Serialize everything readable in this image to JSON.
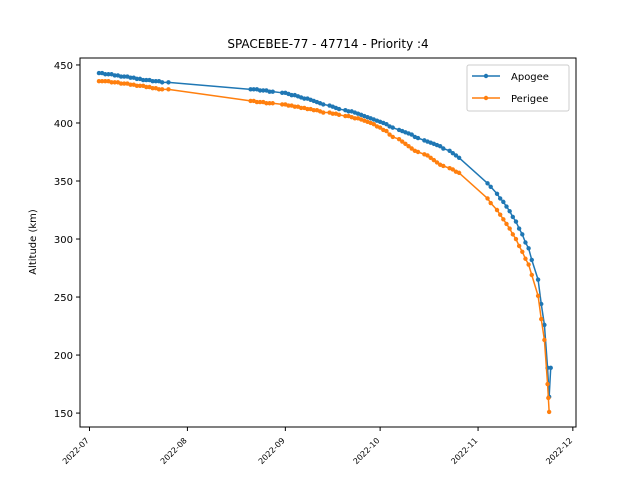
{
  "chart_data": {
    "type": "line",
    "title": "SPACEBEE-77 - 47714 - Priority :4",
    "xlabel": "",
    "ylabel": "Altitude (km)",
    "x_type": "date",
    "xlim": [
      "2022-06-28",
      "2022-12-02"
    ],
    "ylim": [
      138,
      456
    ],
    "yticks": [
      150,
      200,
      250,
      300,
      350,
      400,
      450
    ],
    "xticks": [
      "2022-07-01",
      "2022-08-01",
      "2022-09-01",
      "2022-10-01",
      "2022-11-01",
      "2022-12-01"
    ],
    "xtick_labels": [
      "2022-07",
      "2022-08",
      "2022-09",
      "2022-10",
      "2022-11",
      "2022-12"
    ],
    "grid": false,
    "legend_position": "top-right",
    "series": [
      {
        "name": "Apogee",
        "color": "#1f77b4",
        "x": [
          "2022-07-04",
          "2022-07-05",
          "2022-07-06",
          "2022-07-07",
          "2022-07-08",
          "2022-07-09",
          "2022-07-10",
          "2022-07-11",
          "2022-07-12",
          "2022-07-13",
          "2022-07-14",
          "2022-07-15",
          "2022-07-16",
          "2022-07-17",
          "2022-07-18",
          "2022-07-19",
          "2022-07-20",
          "2022-07-21",
          "2022-07-22",
          "2022-07-23",
          "2022-07-24",
          "2022-07-26",
          "2022-08-21",
          "2022-08-22",
          "2022-08-23",
          "2022-08-24",
          "2022-08-25",
          "2022-08-26",
          "2022-08-27",
          "2022-08-28",
          "2022-08-31",
          "2022-09-01",
          "2022-09-02",
          "2022-09-03",
          "2022-09-04",
          "2022-09-05",
          "2022-09-06",
          "2022-09-07",
          "2022-09-08",
          "2022-09-09",
          "2022-09-10",
          "2022-09-11",
          "2022-09-12",
          "2022-09-13",
          "2022-09-15",
          "2022-09-16",
          "2022-09-17",
          "2022-09-18",
          "2022-09-20",
          "2022-09-21",
          "2022-09-22",
          "2022-09-23",
          "2022-09-24",
          "2022-09-25",
          "2022-09-26",
          "2022-09-27",
          "2022-09-28",
          "2022-09-29",
          "2022-09-30",
          "2022-10-01",
          "2022-10-02",
          "2022-10-03",
          "2022-10-04",
          "2022-10-05",
          "2022-10-07",
          "2022-10-08",
          "2022-10-09",
          "2022-10-10",
          "2022-10-11",
          "2022-10-12",
          "2022-10-13",
          "2022-10-15",
          "2022-10-16",
          "2022-10-17",
          "2022-10-18",
          "2022-10-19",
          "2022-10-20",
          "2022-10-21",
          "2022-10-23",
          "2022-10-24",
          "2022-10-25",
          "2022-10-26",
          "2022-11-04",
          "2022-11-05",
          "2022-11-07",
          "2022-11-08",
          "2022-11-09",
          "2022-11-10",
          "2022-11-11",
          "2022-11-12",
          "2022-11-13",
          "2022-11-14",
          "2022-11-15",
          "2022-11-16",
          "2022-11-17",
          "2022-11-18",
          "2022-11-20",
          "2022-11-21",
          "2022-11-22",
          "2022-11-23",
          "2022-11-23T12",
          "2022-11-24"
        ],
        "values": [
          443,
          443,
          442,
          442,
          442,
          441,
          441,
          440,
          440,
          440,
          439,
          439,
          438,
          438,
          437,
          437,
          437,
          436,
          436,
          436,
          435,
          435,
          429,
          429,
          429,
          428,
          428,
          428,
          427,
          427,
          426,
          426,
          425,
          424,
          424,
          423,
          422,
          421,
          421,
          420,
          419,
          418,
          417,
          416,
          415,
          414,
          413,
          412,
          411,
          410,
          410,
          409,
          408,
          407,
          406,
          405,
          404,
          403,
          402,
          401,
          400,
          399,
          397,
          396,
          394,
          393,
          392,
          391,
          390,
          388,
          387,
          385,
          384,
          383,
          382,
          381,
          380,
          378,
          376,
          374,
          372,
          370,
          348,
          345,
          339,
          335,
          332,
          328,
          324,
          319,
          315,
          309,
          304,
          297,
          292,
          282,
          265,
          244,
          226,
          189,
          164,
          189
        ]
      },
      {
        "name": "Perigee",
        "color": "#ff7f0e",
        "x": [
          "2022-07-04",
          "2022-07-05",
          "2022-07-06",
          "2022-07-07",
          "2022-07-08",
          "2022-07-09",
          "2022-07-10",
          "2022-07-11",
          "2022-07-12",
          "2022-07-13",
          "2022-07-14",
          "2022-07-15",
          "2022-07-16",
          "2022-07-17",
          "2022-07-18",
          "2022-07-19",
          "2022-07-20",
          "2022-07-21",
          "2022-07-22",
          "2022-07-23",
          "2022-07-24",
          "2022-07-26",
          "2022-08-21",
          "2022-08-22",
          "2022-08-23",
          "2022-08-24",
          "2022-08-25",
          "2022-08-26",
          "2022-08-27",
          "2022-08-28",
          "2022-08-31",
          "2022-09-01",
          "2022-09-02",
          "2022-09-03",
          "2022-09-04",
          "2022-09-05",
          "2022-09-06",
          "2022-09-07",
          "2022-09-08",
          "2022-09-09",
          "2022-09-10",
          "2022-09-11",
          "2022-09-12",
          "2022-09-13",
          "2022-09-15",
          "2022-09-16",
          "2022-09-17",
          "2022-09-18",
          "2022-09-20",
          "2022-09-21",
          "2022-09-22",
          "2022-09-23",
          "2022-09-24",
          "2022-09-25",
          "2022-09-26",
          "2022-09-27",
          "2022-09-28",
          "2022-09-29",
          "2022-09-30",
          "2022-10-01",
          "2022-10-02",
          "2022-10-03",
          "2022-10-04",
          "2022-10-05",
          "2022-10-07",
          "2022-10-08",
          "2022-10-09",
          "2022-10-10",
          "2022-10-11",
          "2022-10-12",
          "2022-10-13",
          "2022-10-15",
          "2022-10-16",
          "2022-10-17",
          "2022-10-18",
          "2022-10-19",
          "2022-10-20",
          "2022-10-21",
          "2022-10-23",
          "2022-10-24",
          "2022-10-25",
          "2022-10-26",
          "2022-11-04",
          "2022-11-05",
          "2022-11-07",
          "2022-11-08",
          "2022-11-09",
          "2022-11-10",
          "2022-11-11",
          "2022-11-12",
          "2022-11-13",
          "2022-11-14",
          "2022-11-15",
          "2022-11-16",
          "2022-11-17",
          "2022-11-18",
          "2022-11-20",
          "2022-11-21",
          "2022-11-22",
          "2022-11-23",
          "2022-11-23T06",
          "2022-11-23T12"
        ],
        "values": [
          436,
          436,
          436,
          436,
          435,
          435,
          435,
          434,
          434,
          434,
          433,
          433,
          432,
          432,
          432,
          431,
          431,
          430,
          430,
          429,
          429,
          429,
          419,
          419,
          418,
          418,
          418,
          417,
          417,
          417,
          416,
          416,
          415,
          415,
          414,
          414,
          413,
          413,
          412,
          412,
          411,
          411,
          410,
          409,
          409,
          408,
          408,
          407,
          406,
          406,
          405,
          404,
          404,
          403,
          402,
          401,
          400,
          399,
          397,
          396,
          394,
          393,
          390,
          388,
          386,
          384,
          382,
          380,
          378,
          376,
          375,
          373,
          372,
          370,
          368,
          366,
          364,
          363,
          361,
          360,
          358,
          357,
          335,
          331,
          325,
          321,
          317,
          313,
          309,
          304,
          300,
          294,
          289,
          283,
          278,
          269,
          251,
          231,
          213,
          175,
          163,
          151
        ]
      }
    ]
  }
}
